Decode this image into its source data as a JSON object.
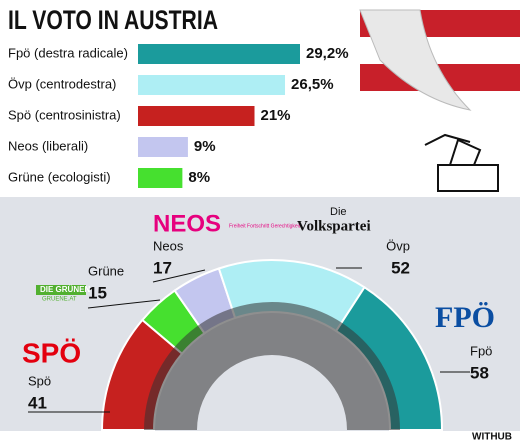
{
  "chart_data": [
    {
      "type": "bar",
      "title": "IL VOTO IN AUSTRIA",
      "categories": [
        "Fpö (destra radicale)",
        "Övp (centrodestra)",
        "Spö (centrosinistra)",
        "Neos (liberali)",
        "Grüne (ecologisti)"
      ],
      "values": [
        29.2,
        26.5,
        21,
        9,
        8
      ],
      "value_labels": [
        "29,2%",
        "26,5%",
        "21%",
        "9%",
        "8%"
      ],
      "colors": [
        "#1b9b9c",
        "#aeeef4",
        "#c6211f",
        "#c3c6ef",
        "#46e02f"
      ]
    },
    {
      "type": "parliament",
      "categories": [
        "Spö",
        "Grüne",
        "Neos",
        "Övp",
        "Fpö"
      ],
      "values": [
        41,
        15,
        17,
        52,
        58
      ],
      "colors": [
        "#c6211f",
        "#46e02f",
        "#c3c6ef",
        "#aeeef4",
        "#1b9b9c"
      ],
      "annotations": [
        "SPÖ",
        "DIE GRÜNEN",
        "GRUENE.AT",
        "NEOS",
        "Freiheit Fortschritt Gerechtigkeit",
        "Die",
        "Volkspartei",
        "FPÖ"
      ]
    }
  ],
  "credit": "WITHUB"
}
